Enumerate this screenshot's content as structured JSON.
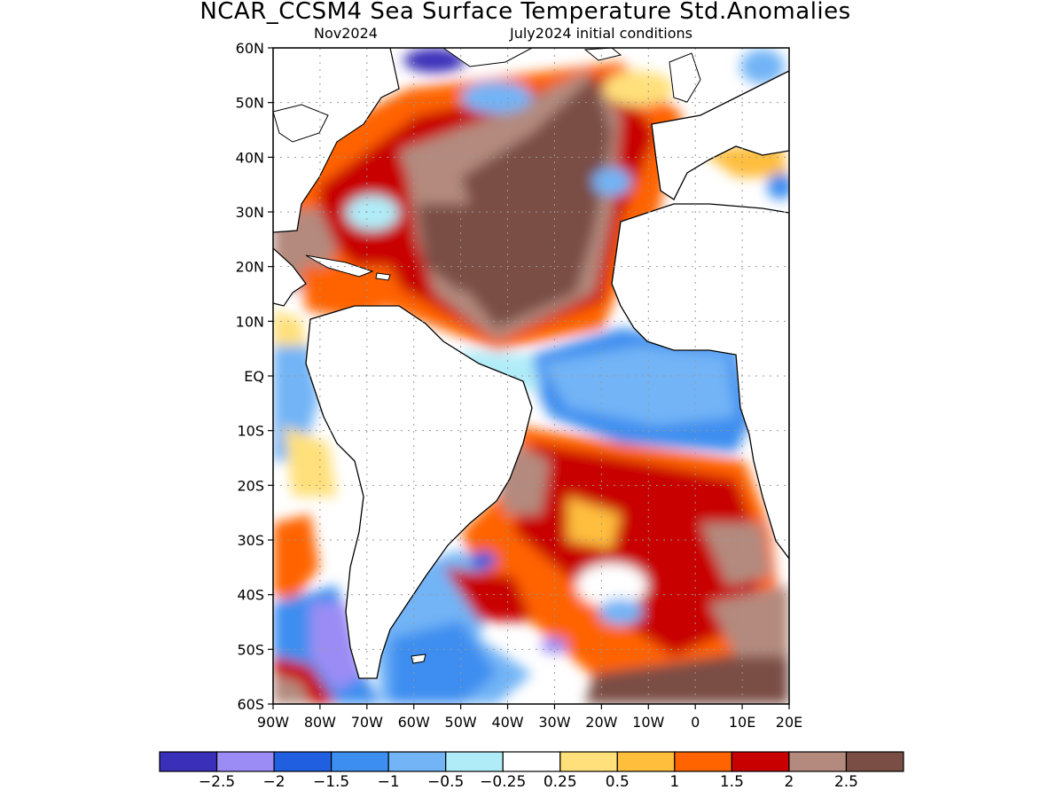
{
  "title": "NCAR_CCSM4 Sea Surface Temperature Std.Anomalies",
  "subtitle_left": "Nov2024",
  "subtitle_right": "July2024 initial conditions",
  "map": {
    "lat_labels": [
      "60N",
      "50N",
      "40N",
      "30N",
      "20N",
      "10N",
      "EQ",
      "10S",
      "20S",
      "30S",
      "40S",
      "50S",
      "60S"
    ],
    "lon_labels": [
      "90W",
      "80W",
      "70W",
      "60W",
      "50W",
      "40W",
      "30W",
      "20W",
      "10W",
      "0",
      "10E",
      "20E"
    ]
  },
  "colorbar": {
    "colors": [
      "#3a2fb8",
      "#9b8cf5",
      "#1f5fe0",
      "#3c8ef0",
      "#72b4f6",
      "#b0ecf8",
      "#ffffff",
      "#ffe07a",
      "#ffbe3c",
      "#ff6400",
      "#c80000",
      "#b48a7e",
      "#7a4e44"
    ],
    "tick_labels": [
      "−2.5",
      "−2",
      "−1.5",
      "−1",
      "−0.5",
      "−0.25",
      "0.25",
      "0.5",
      "1",
      "1.5",
      "2",
      "2.5"
    ]
  },
  "colors": {
    "land": "#ffffff",
    "grid": "#999999",
    "coast": "#000000"
  }
}
